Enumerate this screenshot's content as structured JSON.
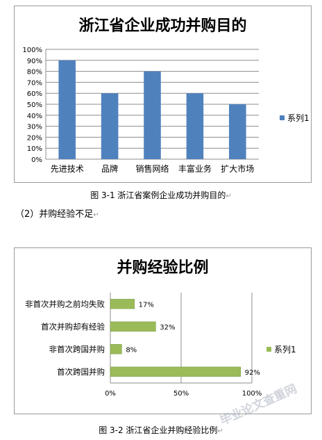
{
  "charts": [
    {
      "type": "bar",
      "title": "浙江省企业成功并购目的",
      "categories": [
        "先进技术",
        "品牌",
        "销售网络",
        "丰富业务",
        "扩大市场"
      ],
      "series": [
        {
          "name": "系列1",
          "values": [
            90,
            60,
            80,
            60,
            50
          ]
        }
      ],
      "ylim": [
        0,
        100
      ],
      "yticks": [
        "0%",
        "10%",
        "20%",
        "30%",
        "40%",
        "50%",
        "60%",
        "70%",
        "80%",
        "90%",
        "100%"
      ],
      "grid": true,
      "legend": "right",
      "color": "#4f81bd"
    },
    {
      "type": "bar",
      "orientation": "horizontal",
      "title": "并购经验比例",
      "categories": [
        "非首次并购之前均失败",
        "首次并购却有经验",
        "非首次跨国并购",
        "首次跨国并购"
      ],
      "series": [
        {
          "name": "系列1",
          "values": [
            17,
            32,
            8,
            92
          ]
        }
      ],
      "value_labels": [
        "17%",
        "32%",
        "8%",
        "92%"
      ],
      "xlim": [
        0,
        100
      ],
      "xticks": [
        "0%",
        "50%",
        "100%"
      ],
      "grid": true,
      "legend": "right",
      "color": "#9bbb59"
    }
  ],
  "captions": {
    "fig1": "图 3-1  浙江省案例企业成功并购目的",
    "fig2": "图 3-2  浙江省企业并购经验比例",
    "para": "（2）并购经验不足",
    "return_mark": "↵"
  },
  "watermark": "毕业论文查重网"
}
